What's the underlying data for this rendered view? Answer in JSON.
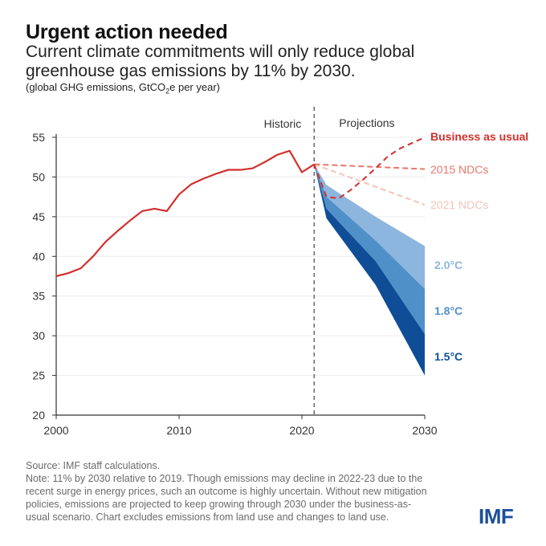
{
  "header": {
    "title": "Urgent action needed",
    "subtitle_line1": "Current climate commitments will only reduce global",
    "subtitle_line2": "greenhouse gas emissions by 11% by 2030.",
    "unit_pre": "(global GHG emissions, GtCO",
    "unit_sub": "2",
    "unit_post": "e per year)"
  },
  "footer": {
    "source": "Source: IMF staff calculations.",
    "note_lines": [
      "Note: 11% by 2030 relative to 2019. Though emissions may decline in 2022-23 due to the",
      "recent surge in energy prices, such an outcome is highly uncertain. Without new mitigation",
      "policies, emissions are projected to keep growing through 2030 under the business-as-",
      "usual scenario. Chart excludes emissions from land use and changes to land use."
    ],
    "logo": "IMF"
  },
  "colors": {
    "historic": "#d2302c",
    "bau": "#d2302c",
    "ndc2015": "#e8766b",
    "ndc2021": "#f3c3b8",
    "band20": "#8db6de",
    "band18": "#5090c9",
    "band15": "#0f4e97"
  },
  "chart_data": {
    "type": "line",
    "title": "Urgent action needed",
    "xlabel": "",
    "ylabel": "GtCO2e per year",
    "xlim": [
      2000,
      2030
    ],
    "ylim": [
      20,
      55
    ],
    "xticks": [
      2000,
      2010,
      2020,
      2030
    ],
    "yticks": [
      20,
      25,
      30,
      35,
      40,
      45,
      50,
      55
    ],
    "grid": true,
    "divider_year": 2021,
    "section_labels": [
      "Historic",
      "Projections"
    ],
    "series": [
      {
        "name": "Historic",
        "style": "solid",
        "x": [
          2000,
          2001,
          2002,
          2003,
          2004,
          2005,
          2006,
          2007,
          2008,
          2009,
          2010,
          2011,
          2012,
          2013,
          2014,
          2015,
          2016,
          2017,
          2018,
          2019,
          2020,
          2021
        ],
        "y": [
          37.5,
          37.9,
          38.5,
          40.0,
          41.8,
          43.2,
          44.5,
          45.7,
          46.0,
          45.7,
          47.8,
          49.1,
          49.8,
          50.4,
          50.9,
          50.9,
          51.1,
          51.9,
          52.8,
          53.3,
          50.6,
          51.6
        ]
      },
      {
        "name": "Business as usual",
        "style": "dashed",
        "x": [
          2021,
          2022,
          2023,
          2024,
          2025,
          2026,
          2027,
          2028,
          2029,
          2030
        ],
        "y": [
          51.6,
          47.5,
          47.3,
          48.4,
          49.7,
          51.1,
          52.6,
          53.6,
          54.3,
          55.0
        ]
      },
      {
        "name": "2015 NDCs",
        "style": "dashed",
        "x": [
          2021,
          2030
        ],
        "y": [
          51.6,
          51.0
        ]
      },
      {
        "name": "2021 NDCs",
        "style": "dashed",
        "x": [
          2021,
          2030
        ],
        "y": [
          51.6,
          46.5
        ]
      }
    ],
    "bands": [
      {
        "name": "2.0°C",
        "x": [
          2021,
          2022,
          2026,
          2030
        ],
        "upper": [
          51.6,
          49.0,
          45.0,
          41.3
        ],
        "lower": [
          51.6,
          47.5,
          42.0,
          35.9
        ]
      },
      {
        "name": "1.8°C",
        "x": [
          2021,
          2022,
          2026,
          2030
        ],
        "upper": [
          51.6,
          47.5,
          42.0,
          35.9
        ],
        "lower": [
          51.6,
          46.0,
          39.4,
          30.2
        ]
      },
      {
        "name": "1.5°C",
        "x": [
          2021,
          2022,
          2026,
          2030
        ],
        "upper": [
          51.6,
          46.0,
          39.4,
          30.2
        ],
        "lower": [
          51.6,
          44.8,
          36.4,
          25.0
        ]
      }
    ]
  }
}
